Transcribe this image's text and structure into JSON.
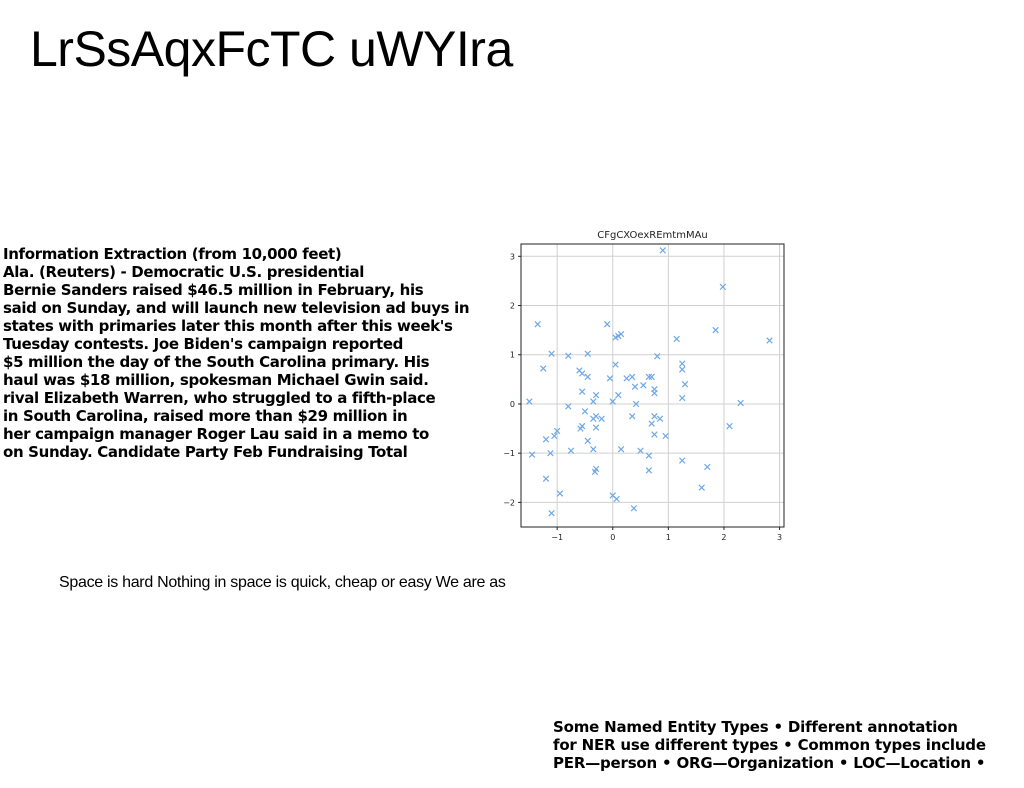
{
  "title": "LrSsAqxFcTC uWYIra",
  "article": {
    "lines": [
      "Information Extraction (from 10,000 feet)",
      "Ala. (Reuters) - Democratic U.S. presidential",
      "Bernie Sanders raised $46.5 million in February, his",
      "said on Sunday, and will launch new television ad buys in",
      "states with primaries later this month after this week's",
      "Tuesday contests. Joe Biden's campaign reported",
      "$5 million the day of the South Carolina primary. His",
      "haul was $18 million, spokesman Michael Gwin said.",
      "rival Elizabeth Warren, who struggled to a fifth-place",
      "in South Carolina, raised more than $29 million in",
      "her campaign manager Roger Lau said in a memo to",
      "on Sunday. Candidate Party Feb Fundraising Total"
    ]
  },
  "space_text": "Space is hard Nothing in space is quick, cheap or easy We are as",
  "ner": {
    "lines": [
      "Some Named Entity Types • Different annotation",
      "for NER use different types • Common types include",
      "PER—person • ORG—Organization • LOC—Location •"
    ]
  },
  "chart_data": {
    "type": "scatter",
    "title": "CFgCXOexREmtmMAu",
    "xlabel": "",
    "ylabel": "",
    "xlim": [
      -1.65,
      3.08
    ],
    "ylim": [
      -2.5,
      3.25
    ],
    "xticks": [
      -1,
      0,
      1,
      2,
      3
    ],
    "yticks": [
      -2,
      -1,
      0,
      1,
      2,
      3
    ],
    "grid": true,
    "marker": "x",
    "color": "#6fa8e8",
    "points": [
      [
        0.9,
        3.12
      ],
      [
        1.98,
        2.38
      ],
      [
        2.82,
        1.29
      ],
      [
        -1.35,
        1.62
      ],
      [
        -0.1,
        1.62
      ],
      [
        0.05,
        1.35
      ],
      [
        0.15,
        1.42
      ],
      [
        0.1,
        1.38
      ],
      [
        1.15,
        1.32
      ],
      [
        1.85,
        1.5
      ],
      [
        -1.1,
        1.02
      ],
      [
        -0.8,
        0.98
      ],
      [
        -0.45,
        1.02
      ],
      [
        0.8,
        0.97
      ],
      [
        -1.25,
        0.72
      ],
      [
        -0.6,
        0.68
      ],
      [
        -0.55,
        0.62
      ],
      [
        -0.45,
        0.55
      ],
      [
        0.05,
        0.8
      ],
      [
        0.65,
        0.55
      ],
      [
        0.7,
        0.55
      ],
      [
        1.25,
        0.82
      ],
      [
        1.25,
        0.7
      ],
      [
        1.3,
        0.4
      ],
      [
        -0.05,
        0.52
      ],
      [
        0.25,
        0.52
      ],
      [
        0.35,
        0.55
      ],
      [
        0.55,
        0.38
      ],
      [
        0.4,
        0.35
      ],
      [
        -0.55,
        0.25
      ],
      [
        -0.3,
        0.18
      ],
      [
        0.1,
        0.18
      ],
      [
        0.75,
        0.3
      ],
      [
        0.75,
        0.22
      ],
      [
        1.25,
        0.12
      ],
      [
        -1.5,
        0.05
      ],
      [
        -0.8,
        -0.05
      ],
      [
        -0.35,
        0.05
      ],
      [
        0.0,
        0.05
      ],
      [
        0.42,
        0.0
      ],
      [
        2.3,
        0.02
      ],
      [
        -0.5,
        -0.15
      ],
      [
        -0.3,
        -0.25
      ],
      [
        -0.35,
        -0.3
      ],
      [
        -0.2,
        -0.3
      ],
      [
        0.35,
        -0.25
      ],
      [
        0.75,
        -0.25
      ],
      [
        0.85,
        -0.3
      ],
      [
        0.7,
        -0.4
      ],
      [
        2.1,
        -0.45
      ],
      [
        -0.55,
        -0.45
      ],
      [
        -0.58,
        -0.5
      ],
      [
        -0.3,
        -0.48
      ],
      [
        -1.0,
        -0.55
      ],
      [
        -1.05,
        -0.65
      ],
      [
        0.75,
        -0.62
      ],
      [
        0.95,
        -0.65
      ],
      [
        -1.2,
        -0.72
      ],
      [
        -0.45,
        -0.75
      ],
      [
        -1.45,
        -1.03
      ],
      [
        -1.12,
        -1.0
      ],
      [
        -0.75,
        -0.95
      ],
      [
        -0.35,
        -0.92
      ],
      [
        0.15,
        -0.92
      ],
      [
        0.5,
        -0.95
      ],
      [
        0.65,
        -1.05
      ],
      [
        1.25,
        -1.15
      ],
      [
        1.7,
        -1.28
      ],
      [
        -0.3,
        -1.32
      ],
      [
        -0.32,
        -1.38
      ],
      [
        0.65,
        -1.35
      ],
      [
        -1.2,
        -1.52
      ],
      [
        1.6,
        -1.7
      ],
      [
        -0.95,
        -1.82
      ],
      [
        0.0,
        -1.86
      ],
      [
        0.07,
        -1.93
      ],
      [
        0.38,
        -2.12
      ],
      [
        -1.1,
        -2.22
      ]
    ]
  }
}
